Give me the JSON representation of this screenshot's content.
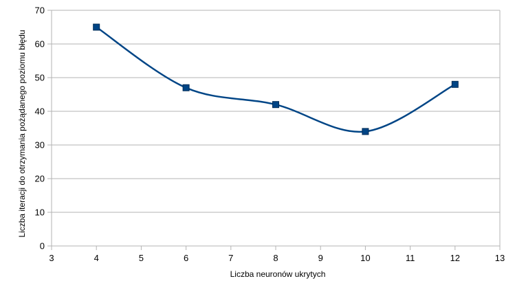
{
  "chart_data": {
    "type": "scatter",
    "title": "",
    "xlabel": "Liczba neuronów ukrytych",
    "ylabel": "Liczba iteracji do otrzymania pożądanego poziomu błędu",
    "xlim": [
      3,
      13
    ],
    "ylim": [
      0,
      70
    ],
    "xticks": [
      3,
      4,
      5,
      6,
      7,
      8,
      9,
      10,
      11,
      12,
      13
    ],
    "yticks": [
      0,
      10,
      20,
      30,
      40,
      50,
      60,
      70
    ],
    "grid": "horizontal",
    "smooth_line": true,
    "marker": "square",
    "legend": "none",
    "series": [
      {
        "color": "#004586",
        "x": [
          4,
          6,
          8,
          10,
          12
        ],
        "y": [
          65,
          47,
          42,
          34,
          48
        ]
      }
    ]
  }
}
